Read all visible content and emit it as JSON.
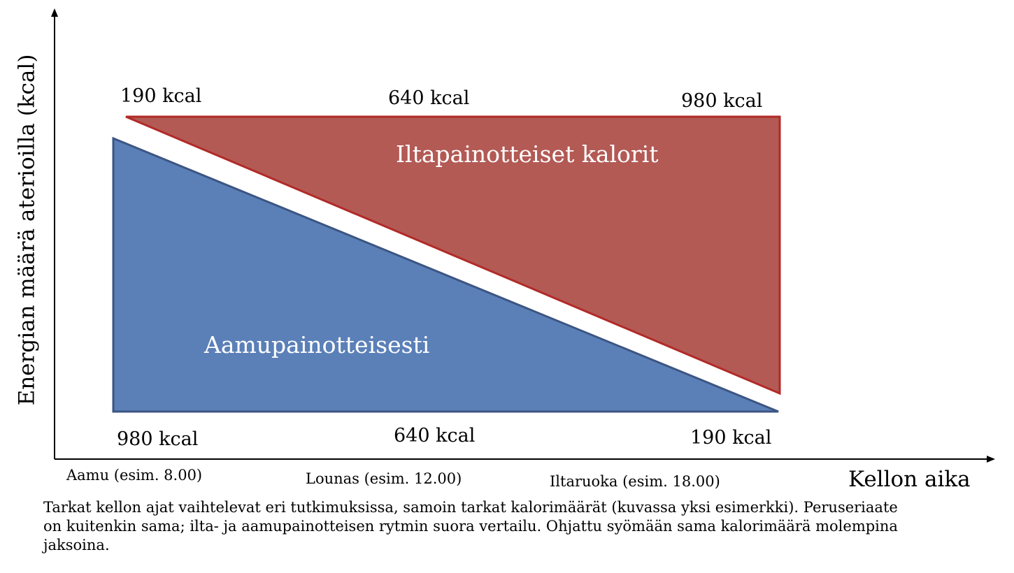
{
  "axes": {
    "y_label": "Energian määrä aterioilla (kcal)",
    "x_label": "Kellon aika"
  },
  "meals": [
    {
      "label": "Aamu (esim. 8.00)"
    },
    {
      "label": "Lounas (esim. 12.00)"
    },
    {
      "label": "Iltaruoka  (esim. 18.00)"
    }
  ],
  "evening_pattern": {
    "label": "Iltapainotteiset kalorit",
    "color": "#b35a55",
    "stroke": "#b22a27",
    "values": [
      "190 kcal",
      "640 kcal",
      "980 kcal"
    ]
  },
  "morning_pattern": {
    "label": "Aamupainotteisesti",
    "color": "#5b80b8",
    "stroke": "#3c5583",
    "values": [
      "980 kcal",
      "640 kcal",
      "190 kcal"
    ]
  },
  "note": "Tarkat kellon ajat vaihtelevat eri tutkimuksissa, samoin tarkat kalorimäärät (kuvassa yksi esimerkki). Peruseriaate on kuitenkin sama; ilta- ja aamupainotteisen rytmin suora vertailu. Ohjattu syömään sama kalorimäärä molempina jaksoina."
}
